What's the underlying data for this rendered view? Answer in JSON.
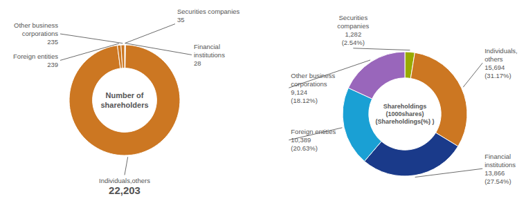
{
  "chart_data": [
    {
      "type": "donut",
      "title": "Number of\nshareholders",
      "categories": [
        "Securities companies",
        "Financial\ninstitutions",
        "Individuals,others",
        "Foreign entities",
        "Other business\ncorporations"
      ],
      "values": [
        35,
        28,
        22203,
        239,
        235
      ],
      "value_labels": [
        "35",
        "28",
        "22,203",
        "239",
        "235"
      ],
      "colors": [
        "#29b4d4",
        "#7744bb",
        "#cc7722",
        "#cc7722",
        "#cc7722"
      ],
      "data_labels": true
    },
    {
      "type": "donut",
      "title": "Shareholdings\n(1000shares)\n(Shareholdings(%) )",
      "categories": [
        "Securities\ncompanies",
        "Individuals,\nothers",
        "Financial\ninstitutions",
        "Foreign entities",
        "Other business\ncorporations"
      ],
      "values": [
        1282,
        15694,
        13866,
        10389,
        9124
      ],
      "value_labels": [
        "1,282",
        "15,694",
        "13,866",
        "10,389",
        "9,124"
      ],
      "percentages": [
        2.54,
        31.17,
        27.54,
        20.63,
        18.12
      ],
      "percentage_labels": [
        "(2.54%)",
        "(31.17%)",
        "(27.54%)",
        "(20.63%)",
        "(18.12%)"
      ],
      "colors": [
        "#99aa00",
        "#cc7722",
        "#1a3a8a",
        "#1aa0d4",
        "#9966bb"
      ],
      "data_labels": true
    }
  ]
}
